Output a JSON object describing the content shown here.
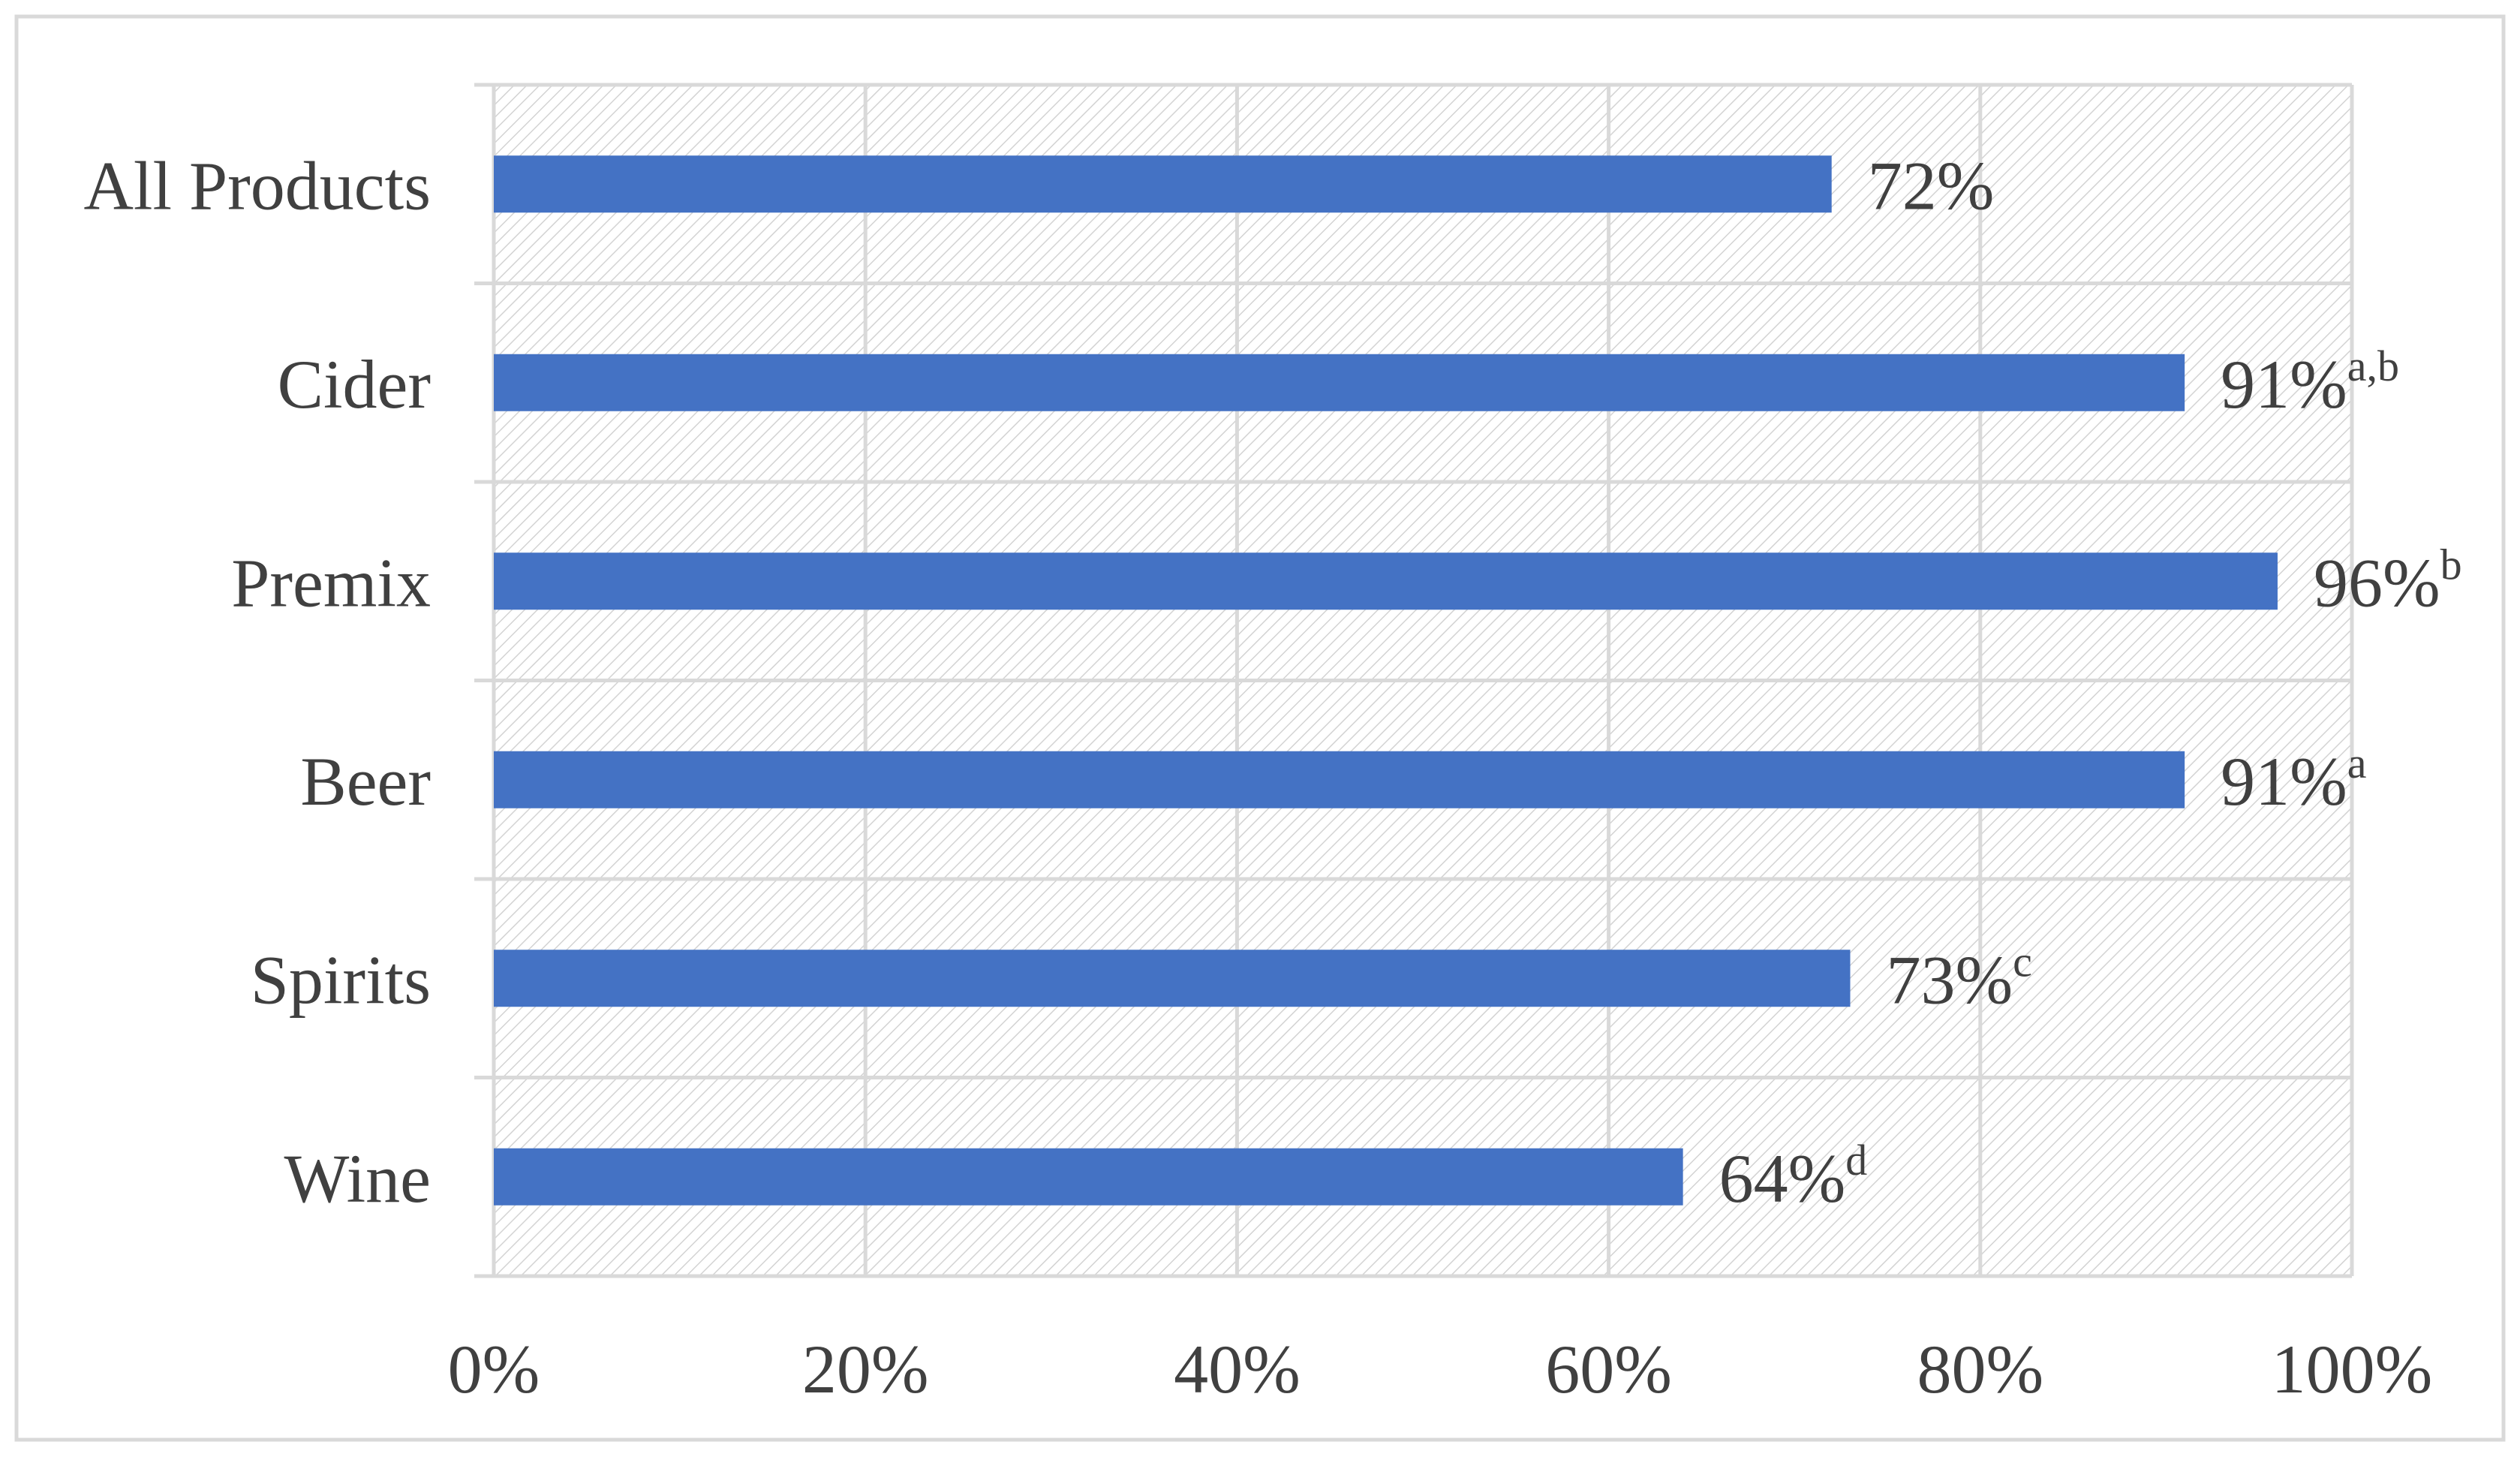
{
  "chart_data": {
    "type": "bar",
    "orientation": "horizontal",
    "categories": [
      "All Products",
      "Cider",
      "Premix",
      "Beer",
      "Spirits",
      "Wine"
    ],
    "values": [
      72,
      91,
      96,
      91,
      73,
      64
    ],
    "value_labels": [
      "72%",
      "91%",
      "96%",
      "91%",
      "73%",
      "64%"
    ],
    "superscripts": [
      "",
      "a,b",
      "b",
      "a",
      "c",
      "d"
    ],
    "xlim": [
      0,
      100
    ],
    "x_ticks": [
      0,
      20,
      40,
      60,
      80,
      100
    ],
    "x_tick_labels": [
      "0%",
      "20%",
      "40%",
      "60%",
      "80%",
      "100%"
    ],
    "title": "",
    "xlabel": "",
    "ylabel": "",
    "grid": true,
    "legend": "none",
    "colors": {
      "bar": "#4472C4",
      "frame_border": "#D9D9D9",
      "gridline": "#D9D9D9",
      "plot_hatch": "#D0D0D0",
      "text": "#404040"
    }
  }
}
